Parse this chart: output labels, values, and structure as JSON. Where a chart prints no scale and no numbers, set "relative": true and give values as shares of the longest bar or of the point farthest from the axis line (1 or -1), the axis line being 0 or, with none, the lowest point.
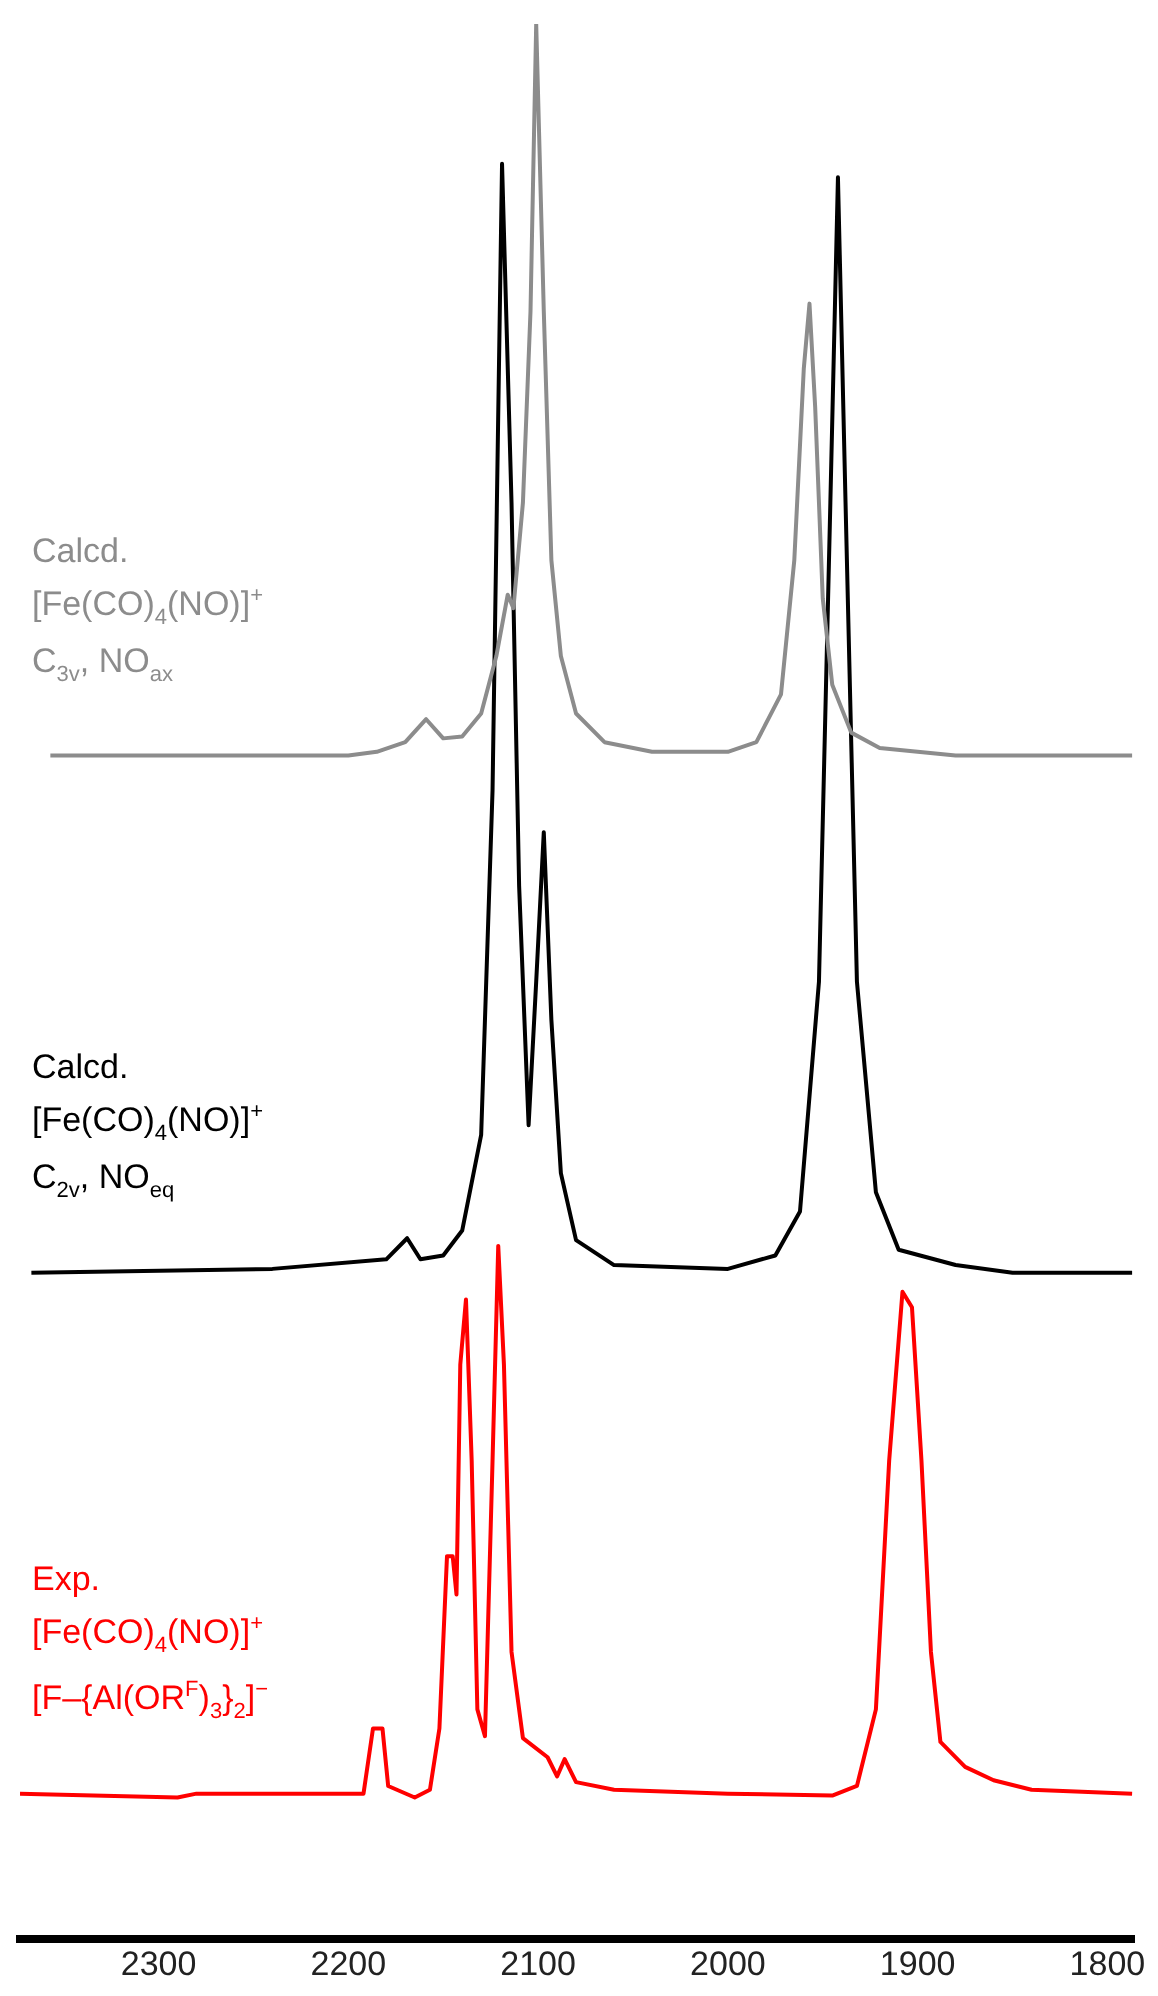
{
  "chart_data": {
    "type": "line",
    "relative": true,
    "xlim": [
      2373,
      1786
    ],
    "xticks": [
      2300,
      2200,
      2100,
      2000,
      1900,
      1800
    ],
    "grid": false,
    "legend": false,
    "marker": "none",
    "line_style": "solid",
    "tick_labels": "x",
    "series": [
      {
        "name": "Calcd.\n[Fe(CO)$_{4}$(NO)]$^{+}$\nC$_{3v}$, NO$_{ax}$",
        "color": "#8c8c8c",
        "x": [
          2357,
          2200,
          2185,
          2170,
          2159,
          2150,
          2140,
          2130,
          2122,
          2116,
          2113,
          2108,
          2104,
          2101,
          2097,
          2093,
          2088,
          2080,
          2065,
          2040,
          2000,
          1985,
          1972,
          1965,
          1960,
          1957,
          1954,
          1950,
          1945,
          1935,
          1920,
          1880,
          1787
        ],
        "values": [
          0.618,
          0.618,
          0.62,
          0.625,
          0.637,
          0.627,
          0.628,
          0.64,
          0.67,
          0.702,
          0.695,
          0.75,
          0.85,
          1.0,
          0.85,
          0.72,
          0.67,
          0.64,
          0.625,
          0.62,
          0.62,
          0.625,
          0.65,
          0.72,
          0.82,
          0.854,
          0.8,
          0.7,
          0.655,
          0.63,
          0.622,
          0.618,
          0.618
        ]
      },
      {
        "name": "Calcd.\n[Fe(CO)$_{4}$(NO)]$^{+}$\nC$_{2v}$, NO$_{eq}$",
        "color": "#000000",
        "x": [
          2367,
          2240,
          2180,
          2169,
          2162,
          2150,
          2140,
          2130,
          2124,
          2119,
          2114,
          2110,
          2105,
          2101,
          2097,
          2093,
          2088,
          2080,
          2060,
          2000,
          1975,
          1962,
          1952,
          1946,
          1942,
          1938,
          1932,
          1922,
          1910,
          1880,
          1850,
          1787
        ],
        "values": [
          0.348,
          0.35,
          0.355,
          0.366,
          0.355,
          0.357,
          0.37,
          0.42,
          0.6,
          0.927,
          0.75,
          0.55,
          0.425,
          0.5,
          0.578,
          0.48,
          0.4,
          0.365,
          0.352,
          0.35,
          0.357,
          0.38,
          0.5,
          0.75,
          0.92,
          0.75,
          0.5,
          0.39,
          0.36,
          0.352,
          0.348,
          0.348
        ]
      },
      {
        "name": "Exp.\n[Fe(CO)$_{4}$(NO)]$^{+}$\n[F–{Al(OR$^{F}$)$_{3}$}$_{2}$]$^{−}$",
        "color": "#ff0000",
        "x": [
          2373,
          2290,
          2280,
          2192,
          2187,
          2182,
          2179,
          2165,
          2157,
          2152,
          2148,
          2145,
          2143,
          2141,
          2138,
          2135,
          2132,
          2128,
          2124,
          2121,
          2118,
          2114,
          2108,
          2095,
          2090,
          2086,
          2080,
          2060,
          2000,
          1945,
          1932,
          1922,
          1915,
          1908,
          1903,
          1898,
          1893,
          1888,
          1875,
          1860,
          1840,
          1787
        ],
        "values": [
          0.076,
          0.074,
          0.076,
          0.076,
          0.11,
          0.11,
          0.08,
          0.074,
          0.078,
          0.11,
          0.2,
          0.2,
          0.18,
          0.3,
          0.334,
          0.25,
          0.12,
          0.106,
          0.25,
          0.362,
          0.3,
          0.15,
          0.105,
          0.095,
          0.085,
          0.094,
          0.082,
          0.078,
          0.076,
          0.075,
          0.08,
          0.12,
          0.25,
          0.338,
          0.33,
          0.25,
          0.15,
          0.103,
          0.09,
          0.083,
          0.078,
          0.076
        ]
      }
    ]
  }
}
